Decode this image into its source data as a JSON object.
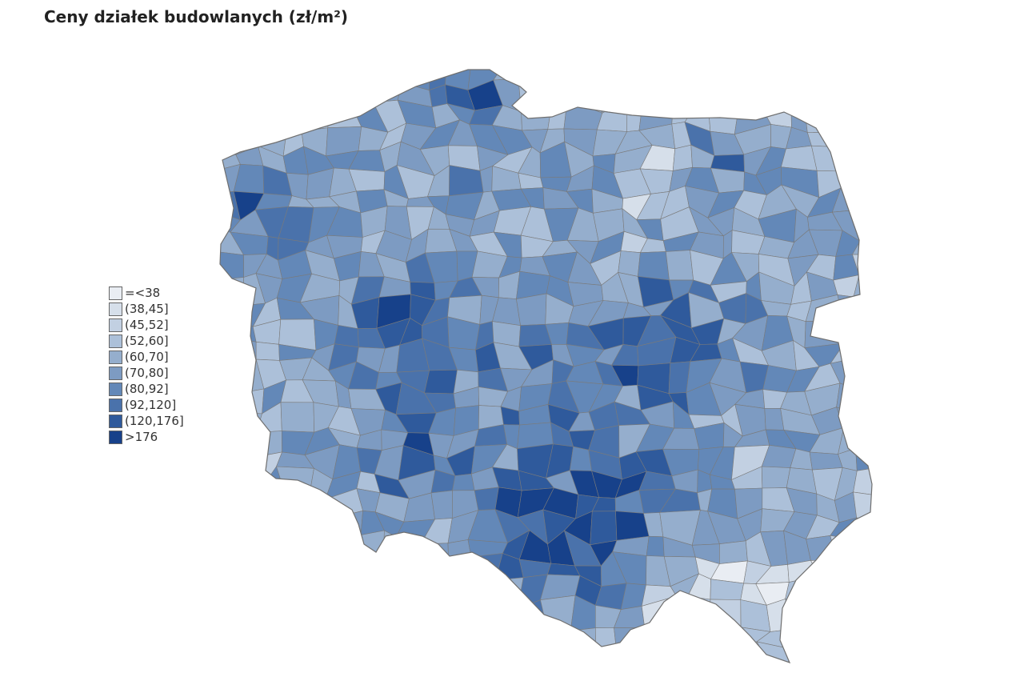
{
  "title": "Ceny działek budowlanych (zł/m²)",
  "legend": [
    {
      "label": "=<38",
      "color": "#e9edf3"
    },
    {
      "label": "(38,45]",
      "color": "#d6dfea"
    },
    {
      "label": "(45,52]",
      "color": "#c2d0e2"
    },
    {
      "label": "(52,60]",
      "color": "#acc0d9"
    },
    {
      "label": "(60,70]",
      "color": "#95aecd"
    },
    {
      "label": "(70,80]",
      "color": "#7d9bc2"
    },
    {
      "label": "(80,92]",
      "color": "#6388b8"
    },
    {
      "label": "(92,120]",
      "color": "#4a72ab"
    },
    {
      "label": "(120,176]",
      "color": "#2f5a9c"
    },
    {
      "label": ">176",
      "color": "#17418a"
    }
  ],
  "border_color": "#7a7a7a"
}
